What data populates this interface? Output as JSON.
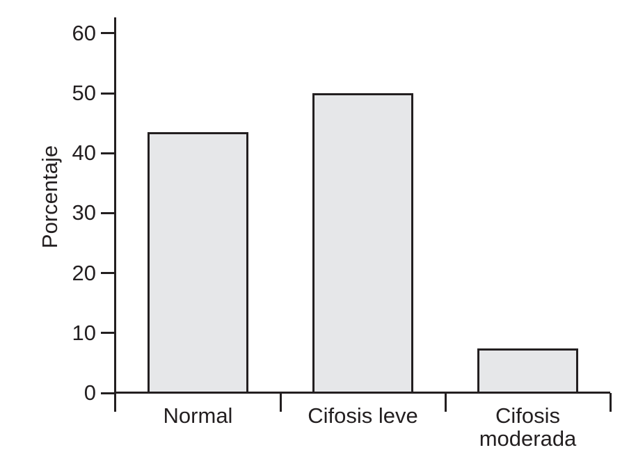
{
  "chart_data": {
    "type": "bar",
    "title": "",
    "xlabel": "",
    "ylabel": "Porcentaje",
    "categories": [
      "Normal",
      "Cifosis leve",
      "Cifosis moderada"
    ],
    "category_label_lines": [
      [
        "Normal"
      ],
      [
        "Cifosis leve"
      ],
      [
        "Cifosis",
        "moderada"
      ]
    ],
    "values": [
      43.4,
      49.8,
      7.3
    ],
    "yticks": [
      0,
      10,
      20,
      30,
      40,
      50,
      60
    ],
    "ylim": [
      0,
      62
    ],
    "grid": false,
    "legend": false,
    "bar_fill": "#e6e7e9",
    "line_color": "#231f20",
    "background": "#ffffff"
  }
}
